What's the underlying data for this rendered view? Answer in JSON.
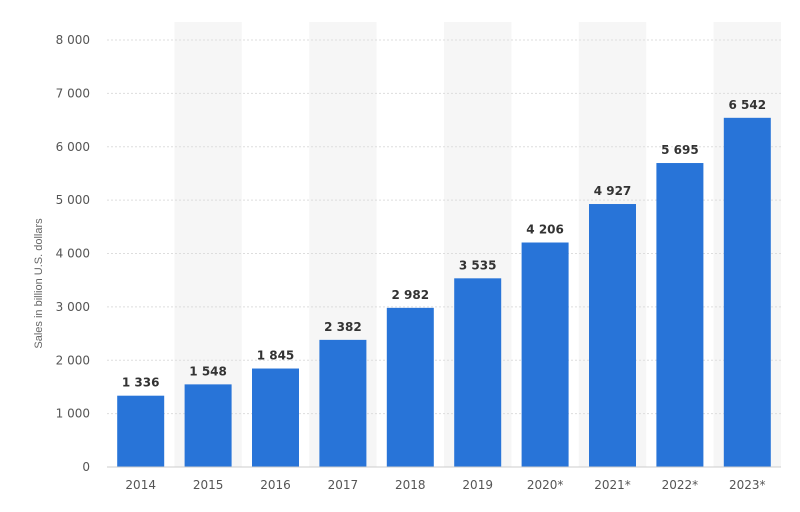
{
  "chart_data": {
    "type": "bar",
    "title": "",
    "xlabel": "",
    "ylabel": "Sales in billion U.S. dollars",
    "categories": [
      "2014",
      "2015",
      "2016",
      "2017",
      "2018",
      "2019",
      "2020*",
      "2021*",
      "2022*",
      "2023*"
    ],
    "values": [
      1336,
      1548,
      1845,
      2382,
      2982,
      3535,
      4206,
      4927,
      5695,
      6542
    ],
    "value_labels": [
      "1 336",
      "1 548",
      "1 845",
      "2 382",
      "2 982",
      "3 535",
      "4 206",
      "4 927",
      "5 695",
      "6 542"
    ],
    "ylim": [
      0,
      8000
    ],
    "yticks": [
      0,
      1000,
      2000,
      3000,
      4000,
      5000,
      6000,
      7000,
      8000
    ],
    "ytick_labels": [
      "0",
      "1 000",
      "2 000",
      "3 000",
      "4 000",
      "5 000",
      "6 000",
      "7 000",
      "8 000"
    ],
    "grid": true,
    "bar_color": "#2874d8",
    "alt_column_color": "#f6f6f6",
    "grid_color": "#dddddd"
  }
}
